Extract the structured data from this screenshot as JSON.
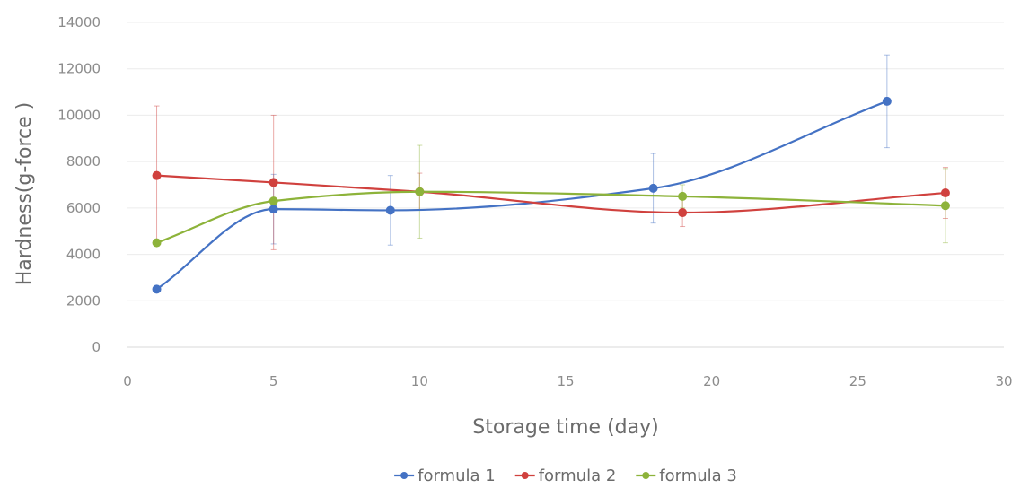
{
  "chart_data": {
    "type": "line",
    "title": "",
    "xlabel": "Storage time (day)",
    "ylabel": "Hardness(g-force )",
    "xlim": [
      0,
      30
    ],
    "ylim": [
      0,
      14000
    ],
    "xticks": [
      0,
      5,
      10,
      15,
      20,
      25,
      30
    ],
    "yticks": [
      0,
      2000,
      4000,
      6000,
      8000,
      10000,
      12000,
      14000
    ],
    "grid": true,
    "legend_position": "bottom",
    "smooth": true,
    "series": [
      {
        "name": "formula 1",
        "color": "#4472c4",
        "x": [
          1,
          5,
          9,
          18,
          26
        ],
        "y": [
          2500,
          5950,
          5900,
          6850,
          10600
        ],
        "err": [
          0,
          1500,
          1500,
          1500,
          2000
        ]
      },
      {
        "name": "formula 2",
        "color": "#d0413e",
        "x": [
          1,
          5,
          10,
          19,
          28
        ],
        "y": [
          7400,
          7100,
          6700,
          5800,
          6650
        ],
        "err": [
          3000,
          2900,
          800,
          600,
          1100
        ]
      },
      {
        "name": "formula 3",
        "color": "#8db33a",
        "x": [
          1,
          5,
          10,
          19,
          28
        ],
        "y": [
          4500,
          6300,
          6700,
          6500,
          6100
        ],
        "err": [
          0,
          0,
          2000,
          500,
          1600
        ]
      }
    ]
  }
}
